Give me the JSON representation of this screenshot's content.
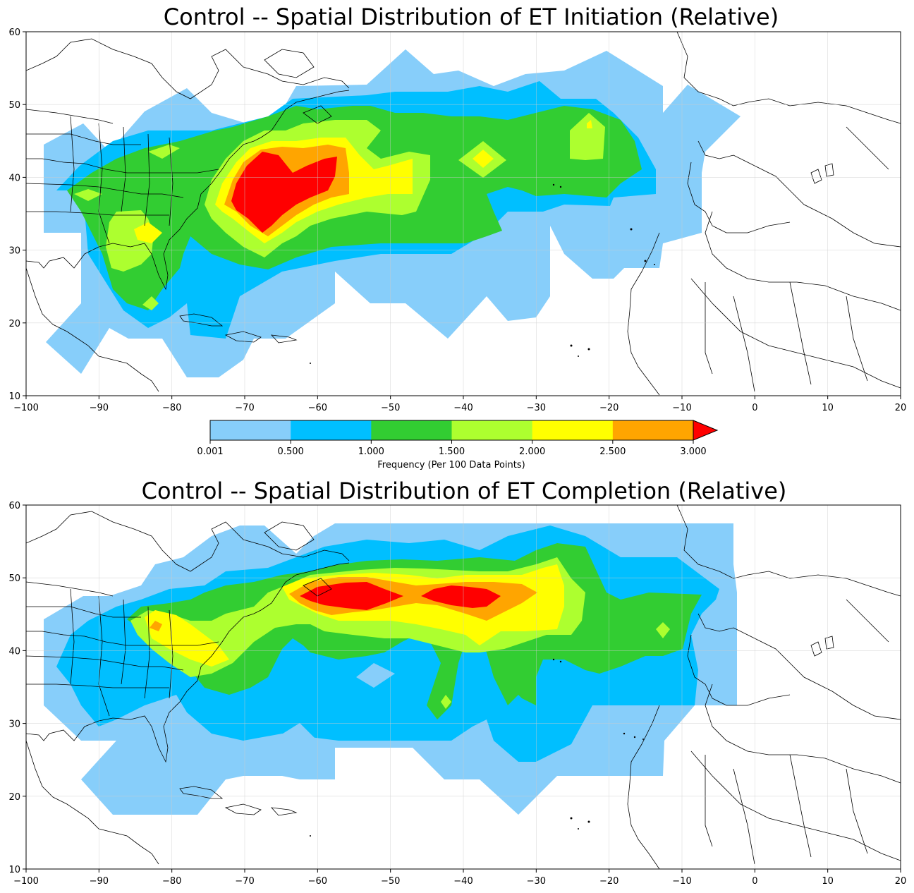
{
  "panels": [
    {
      "id": "initiation",
      "title": "Control -- Spatial Distribution of ET Initiation (Relative)",
      "lon_ticks": [
        "−100",
        "−90",
        "−80",
        "−70",
        "−60",
        "−50",
        "−40",
        "−30",
        "−20",
        "−10",
        "0",
        "10",
        "20"
      ],
      "lat_ticks": [
        "60",
        "50",
        "40",
        "30",
        "20",
        "10"
      ]
    },
    {
      "id": "completion",
      "title": "Control -- Spatial Distribution of ET Completion (Relative)",
      "lon_ticks": [
        "−100",
        "−90",
        "−80",
        "−70",
        "−60",
        "−50",
        "−40",
        "−30",
        "−20",
        "−10",
        "0",
        "10",
        "20"
      ],
      "lat_ticks": [
        "60",
        "50",
        "40",
        "30",
        "20",
        "10"
      ]
    }
  ],
  "colorbar": {
    "label": "Frequency (Per 100 Data Points)",
    "ticks": [
      "0.001",
      "0.500",
      "1.000",
      "1.500",
      "2.000",
      "2.500",
      "3.000"
    ],
    "colors": [
      "#87cefa",
      "#00bfff",
      "#32cd32",
      "#adff2f",
      "#ffff00",
      "#ffa500",
      "#ff0000"
    ],
    "extend": "max"
  },
  "chart_data": [
    {
      "type": "heatmap",
      "title": "Control -- Spatial Distribution of ET Initiation (Relative)",
      "xlim": [
        -100,
        20
      ],
      "ylim": [
        10,
        60
      ],
      "levels": [
        0.001,
        0.5,
        1.0,
        1.5,
        2.0,
        2.5,
        3.0
      ],
      "grid": true,
      "regions": [
        {
          "level": 0.001,
          "lon": [
            -98,
            -5
          ],
          "lat": [
            13,
            57
          ]
        },
        {
          "level": 0.5,
          "lon": [
            -96,
            -12
          ],
          "lat": [
            19,
            54
          ]
        },
        {
          "level": 1.0,
          "lon": [
            -95,
            -22
          ],
          "lat": [
            20,
            50
          ]
        },
        {
          "level": 1.5,
          "lon": [
            -92,
            -20
          ],
          "lat": [
            21,
            49
          ]
        },
        {
          "level": 2.0,
          "lon": [
            -84,
            -57
          ],
          "lat": [
            32,
            48
          ]
        },
        {
          "level": 2.5,
          "lon": [
            -76,
            -56
          ],
          "lat": [
            31,
            45
          ]
        },
        {
          "level": 3.0,
          "lon": [
            -73,
            -57
          ],
          "lat": [
            32,
            44
          ]
        }
      ]
    },
    {
      "type": "heatmap",
      "title": "Control -- Spatial Distribution of ET Completion (Relative)",
      "xlim": [
        -100,
        20
      ],
      "ylim": [
        10,
        60
      ],
      "levels": [
        0.001,
        0.5,
        1.0,
        1.5,
        2.0,
        2.5,
        3.0
      ],
      "grid": true,
      "regions": [
        {
          "level": 0.001,
          "lon": [
            -98,
            -3
          ],
          "lat": [
            17,
            57
          ]
        },
        {
          "level": 0.5,
          "lon": [
            -97,
            -5
          ],
          "lat": [
            25,
            54
          ]
        },
        {
          "level": 1.0,
          "lon": [
            -89,
            -10
          ],
          "lat": [
            30,
            53
          ]
        },
        {
          "level": 1.5,
          "lon": [
            -85,
            -28
          ],
          "lat": [
            37,
            51
          ]
        },
        {
          "level": 2.0,
          "lon": [
            -85,
            -28
          ],
          "lat": [
            38,
            50
          ]
        },
        {
          "level": 2.5,
          "lon": [
            -63,
            -33
          ],
          "lat": [
            43,
            49
          ]
        },
        {
          "level": 3.0,
          "lon": [
            -61,
            -31
          ],
          "lat": [
            45,
            48
          ]
        }
      ]
    }
  ]
}
